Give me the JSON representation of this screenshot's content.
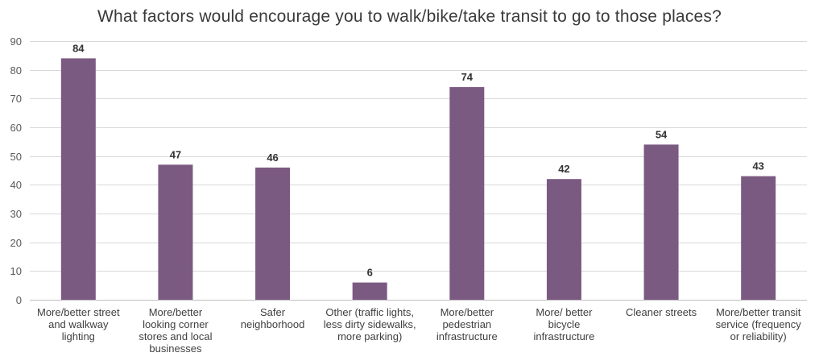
{
  "chart_data": {
    "type": "bar",
    "title": "What factors would encourage you to walk/bike/take transit to go to those places?",
    "xlabel": "",
    "ylabel": "",
    "ylim": [
      0,
      90
    ],
    "yticks": [
      0,
      10,
      20,
      30,
      40,
      50,
      60,
      70,
      80,
      90
    ],
    "grid": true,
    "bar_color": "#7b5a82",
    "categories": [
      [
        "More/better street",
        "and walkway",
        "lighting"
      ],
      [
        "More/better",
        "looking corner",
        "stores and local",
        "businesses"
      ],
      [
        "Safer",
        "neighborhood"
      ],
      [
        "Other (traffic lights,",
        "less dirty sidewalks,",
        "more parking)"
      ],
      [
        "More/better",
        "pedestrian",
        "infrastructure"
      ],
      [
        "More/ better",
        "bicycle",
        "infrastructure"
      ],
      [
        "Cleaner  streets"
      ],
      [
        "More/better transit",
        "service (frequency",
        "or reliability)"
      ]
    ],
    "values": [
      84,
      47,
      46,
      6,
      74,
      42,
      54,
      43
    ]
  }
}
